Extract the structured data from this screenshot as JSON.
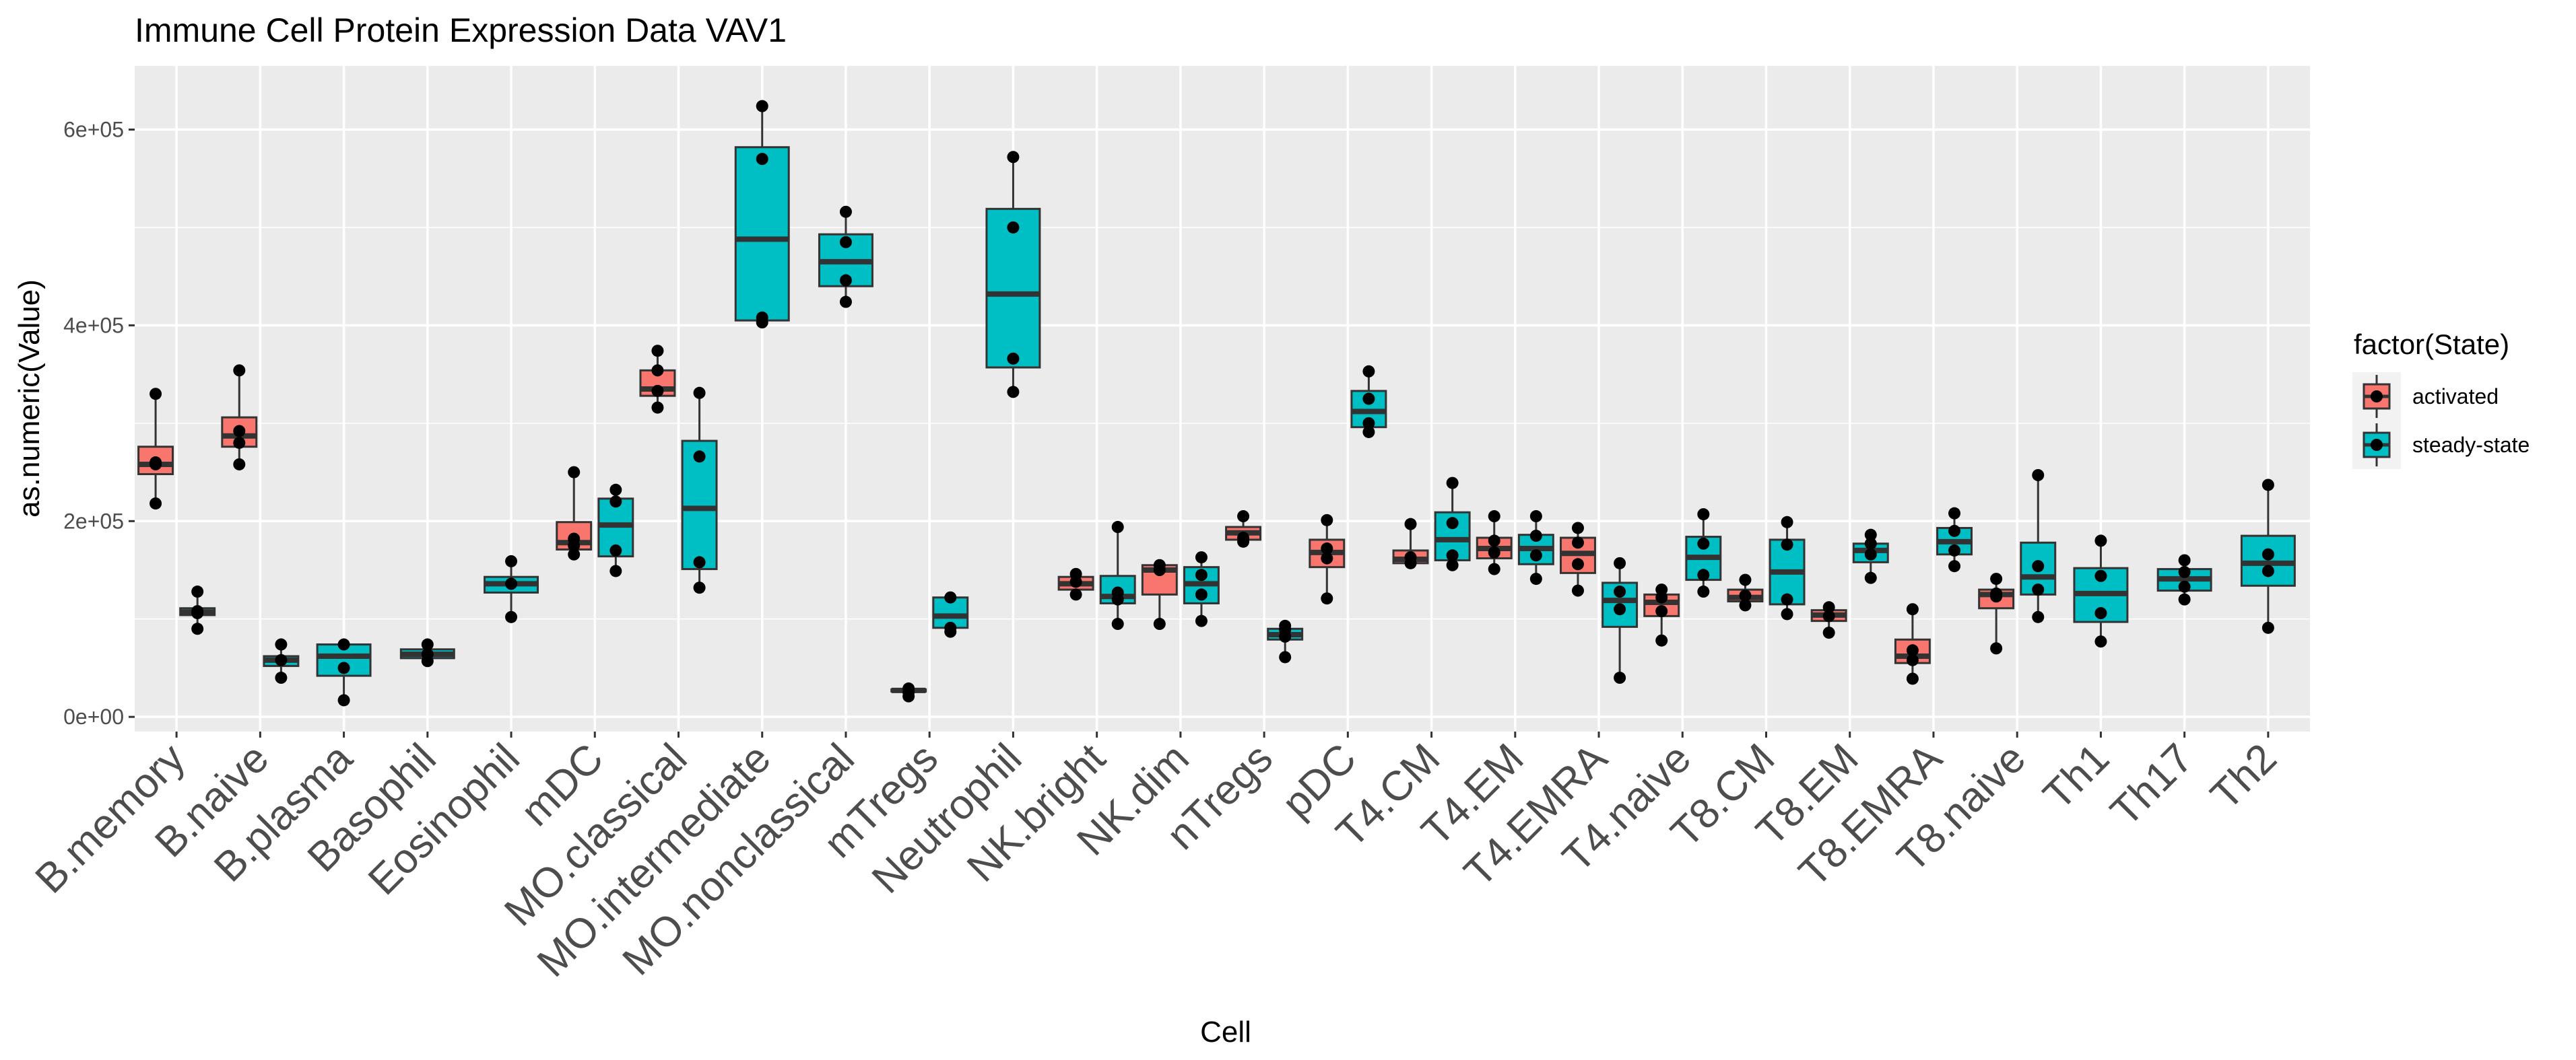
{
  "chart_data": {
    "type": "boxplot",
    "title": "Immune Cell Protein Expression Data VAV1",
    "xlabel": "Cell",
    "ylabel": "as.numeric(Value)",
    "ylim": [
      -15000,
      665000
    ],
    "yticks": [
      0,
      200000,
      400000,
      600000
    ],
    "ytick_labels": [
      "0e+00",
      "2e+05",
      "4e+05",
      "6e+05"
    ],
    "legend": {
      "title": "factor(State)",
      "position": "right",
      "entries": [
        {
          "key": "activated",
          "label": "activated",
          "color": "#F8766D"
        },
        {
          "key": "steady-state",
          "label": "steady-state",
          "color": "#00BFC4"
        }
      ]
    },
    "categories": [
      "B.memory",
      "B.naive",
      "B.plasma",
      "Basophil",
      "Eosinophil",
      "mDC",
      "MO.classical",
      "MO.intermediate",
      "MO.nonclassical",
      "mTregs",
      "Neutrophil",
      "NK.bright",
      "NK.dim",
      "nTregs",
      "pDC",
      "T4.CM",
      "T4.EM",
      "T4.EMRA",
      "T4.naive",
      "T8.CM",
      "T8.EM",
      "T8.EMRA",
      "T8.naive",
      "Th1",
      "Th17",
      "Th2"
    ],
    "groups": [
      {
        "category": "B.memory",
        "state": "activated",
        "q1": 248000,
        "median": 258000,
        "q3": 276000,
        "whisker_low": 218000,
        "whisker_high": 330000,
        "points": [
          218000,
          258000,
          260000,
          330000
        ]
      },
      {
        "category": "B.memory",
        "state": "steady-state",
        "q1": 104000,
        "median": 107000,
        "q3": 111000,
        "whisker_low": 90000,
        "whisker_high": 128000,
        "points": [
          90000,
          106000,
          108000,
          128000
        ]
      },
      {
        "category": "B.naive",
        "state": "activated",
        "q1": 276000,
        "median": 287000,
        "q3": 306000,
        "whisker_low": 258000,
        "whisker_high": 354000,
        "points": [
          258000,
          280000,
          292000,
          354000
        ]
      },
      {
        "category": "B.naive",
        "state": "steady-state",
        "q1": 52000,
        "median": 58000,
        "q3": 62000,
        "whisker_low": 40000,
        "whisker_high": 74000,
        "points": [
          40000,
          58000,
          74000
        ]
      },
      {
        "category": "B.plasma",
        "state": "steady-state",
        "q1": 42000,
        "median": 62000,
        "q3": 74000,
        "whisker_low": 17000,
        "whisker_high": 74000,
        "points": [
          17000,
          50000,
          74000
        ]
      },
      {
        "category": "Basophil",
        "state": "steady-state",
        "q1": 60000,
        "median": 64000,
        "q3": 69000,
        "whisker_low": 57000,
        "whisker_high": 74000,
        "points": [
          57000,
          64000,
          74000
        ]
      },
      {
        "category": "Eosinophil",
        "state": "steady-state",
        "q1": 127000,
        "median": 136000,
        "q3": 143000,
        "whisker_low": 102000,
        "whisker_high": 159000,
        "points": [
          102000,
          136000,
          159000
        ]
      },
      {
        "category": "mDC",
        "state": "activated",
        "q1": 171000,
        "median": 178000,
        "q3": 199000,
        "whisker_low": 166000,
        "whisker_high": 250000,
        "points": [
          166000,
          175000,
          182000,
          250000
        ]
      },
      {
        "category": "mDC",
        "state": "steady-state",
        "q1": 164000,
        "median": 196000,
        "q3": 223000,
        "whisker_low": 149000,
        "whisker_high": 232000,
        "points": [
          149000,
          170000,
          220000,
          232000
        ]
      },
      {
        "category": "MO.classical",
        "state": "activated",
        "q1": 328000,
        "median": 335000,
        "q3": 354000,
        "whisker_low": 316000,
        "whisker_high": 374000,
        "points": [
          316000,
          333000,
          354000,
          374000
        ]
      },
      {
        "category": "MO.classical",
        "state": "steady-state",
        "q1": 151000,
        "median": 213000,
        "q3": 282000,
        "whisker_low": 132000,
        "whisker_high": 331000,
        "points": [
          132000,
          158000,
          266000,
          331000
        ]
      },
      {
        "category": "MO.intermediate",
        "state": "steady-state",
        "q1": 405000,
        "median": 488000,
        "q3": 582000,
        "whisker_low": 403000,
        "whisker_high": 624000,
        "points": [
          403000,
          408000,
          570000,
          624000
        ]
      },
      {
        "category": "MO.nonclassical",
        "state": "steady-state",
        "q1": 440000,
        "median": 465000,
        "q3": 493000,
        "whisker_low": 424000,
        "whisker_high": 516000,
        "points": [
          424000,
          446000,
          485000,
          516000
        ]
      },
      {
        "category": "mTregs",
        "state": "activated",
        "q1": 26000,
        "median": 27000,
        "q3": 28000,
        "whisker_low": 21000,
        "whisker_high": 29000,
        "points": [
          21000,
          25000,
          29000
        ]
      },
      {
        "category": "mTregs",
        "state": "steady-state",
        "q1": 91000,
        "median": 103000,
        "q3": 122000,
        "whisker_low": 87000,
        "whisker_high": 122000,
        "points": [
          87000,
          91000,
          122000
        ]
      },
      {
        "category": "Neutrophil",
        "state": "steady-state",
        "q1": 357000,
        "median": 432000,
        "q3": 519000,
        "whisker_low": 332000,
        "whisker_high": 572000,
        "points": [
          332000,
          366000,
          500000,
          572000
        ]
      },
      {
        "category": "NK.bright",
        "state": "activated",
        "q1": 130000,
        "median": 136000,
        "q3": 143000,
        "whisker_low": 125000,
        "whisker_high": 146000,
        "points": [
          125000,
          138000,
          146000
        ]
      },
      {
        "category": "NK.bright",
        "state": "steady-state",
        "q1": 116000,
        "median": 123000,
        "q3": 144000,
        "whisker_low": 95000,
        "whisker_high": 194000,
        "points": [
          95000,
          120000,
          127000,
          194000
        ]
      },
      {
        "category": "NK.dim",
        "state": "activated",
        "q1": 125000,
        "median": 150000,
        "q3": 155000,
        "whisker_low": 95000,
        "whisker_high": 160000,
        "points": [
          95000,
          150000,
          155000
        ]
      },
      {
        "category": "NK.dim",
        "state": "steady-state",
        "q1": 116000,
        "median": 136000,
        "q3": 153000,
        "whisker_low": 98000,
        "whisker_high": 163000,
        "points": [
          98000,
          125000,
          145000,
          163000
        ]
      },
      {
        "category": "nTregs",
        "state": "activated",
        "q1": 181000,
        "median": 188000,
        "q3": 194000,
        "whisker_low": 179000,
        "whisker_high": 205000,
        "points": [
          179000,
          183000,
          205000
        ]
      },
      {
        "category": "nTregs",
        "state": "steady-state",
        "q1": 79000,
        "median": 84000,
        "q3": 90000,
        "whisker_low": 61000,
        "whisker_high": 93000,
        "points": [
          61000,
          82000,
          89000,
          93000
        ]
      },
      {
        "category": "pDC",
        "state": "activated",
        "q1": 153000,
        "median": 168000,
        "q3": 181000,
        "whisker_low": 121000,
        "whisker_high": 201000,
        "points": [
          121000,
          162000,
          172000,
          201000
        ]
      },
      {
        "category": "pDC",
        "state": "steady-state",
        "q1": 296000,
        "median": 312000,
        "q3": 333000,
        "whisker_low": 291000,
        "whisker_high": 353000,
        "points": [
          291000,
          300000,
          325000,
          353000
        ]
      },
      {
        "category": "T4.CM",
        "state": "activated",
        "q1": 157000,
        "median": 161000,
        "q3": 170000,
        "whisker_low": 157000,
        "whisker_high": 197000,
        "points": [
          157000,
          163000,
          197000
        ]
      },
      {
        "category": "T4.CM",
        "state": "steady-state",
        "q1": 160000,
        "median": 181000,
        "q3": 209000,
        "whisker_low": 155000,
        "whisker_high": 239000,
        "points": [
          155000,
          165000,
          198000,
          239000
        ]
      },
      {
        "category": "T4.EM",
        "state": "activated",
        "q1": 162000,
        "median": 172000,
        "q3": 183000,
        "whisker_low": 151000,
        "whisker_high": 205000,
        "points": [
          151000,
          168000,
          180000,
          205000
        ]
      },
      {
        "category": "T4.EM",
        "state": "steady-state",
        "q1": 156000,
        "median": 172000,
        "q3": 186000,
        "whisker_low": 141000,
        "whisker_high": 205000,
        "points": [
          141000,
          165000,
          185000,
          205000
        ]
      },
      {
        "category": "T4.EMRA",
        "state": "activated",
        "q1": 147000,
        "median": 167000,
        "q3": 183000,
        "whisker_low": 129000,
        "whisker_high": 193000,
        "points": [
          129000,
          156000,
          178000,
          193000
        ]
      },
      {
        "category": "T4.EMRA",
        "state": "steady-state",
        "q1": 92000,
        "median": 119000,
        "q3": 137000,
        "whisker_low": 40000,
        "whisker_high": 157000,
        "points": [
          40000,
          110000,
          128000,
          157000
        ]
      },
      {
        "category": "T4.naive",
        "state": "activated",
        "q1": 103000,
        "median": 117000,
        "q3": 125000,
        "whisker_low": 78000,
        "whisker_high": 130000,
        "points": [
          78000,
          108000,
          122000,
          130000
        ]
      },
      {
        "category": "T4.naive",
        "state": "steady-state",
        "q1": 140000,
        "median": 163000,
        "q3": 184000,
        "whisker_low": 128000,
        "whisker_high": 207000,
        "points": [
          128000,
          145000,
          177000,
          207000
        ]
      },
      {
        "category": "T8.CM",
        "state": "activated",
        "q1": 118000,
        "median": 122000,
        "q3": 130000,
        "whisker_low": 114000,
        "whisker_high": 140000,
        "points": [
          114000,
          124000,
          140000
        ]
      },
      {
        "category": "T8.CM",
        "state": "steady-state",
        "q1": 115000,
        "median": 148000,
        "q3": 181000,
        "whisker_low": 105000,
        "whisker_high": 199000,
        "points": [
          105000,
          120000,
          176000,
          199000
        ]
      },
      {
        "category": "T8.EM",
        "state": "activated",
        "q1": 98000,
        "median": 104000,
        "q3": 109000,
        "whisker_low": 86000,
        "whisker_high": 112000,
        "points": [
          86000,
          103000,
          112000
        ]
      },
      {
        "category": "T8.EM",
        "state": "steady-state",
        "q1": 158000,
        "median": 170000,
        "q3": 177000,
        "whisker_low": 142000,
        "whisker_high": 186000,
        "points": [
          142000,
          166000,
          177000,
          186000
        ]
      },
      {
        "category": "T8.EMRA",
        "state": "activated",
        "q1": 55000,
        "median": 62000,
        "q3": 79000,
        "whisker_low": 39000,
        "whisker_high": 110000,
        "points": [
          39000,
          58000,
          68000,
          110000
        ]
      },
      {
        "category": "T8.EMRA",
        "state": "steady-state",
        "q1": 166000,
        "median": 179000,
        "q3": 193000,
        "whisker_low": 154000,
        "whisker_high": 208000,
        "points": [
          154000,
          170000,
          190000,
          208000
        ]
      },
      {
        "category": "T8.naive",
        "state": "activated",
        "q1": 111000,
        "median": 125000,
        "q3": 130000,
        "whisker_low": 70000,
        "whisker_high": 141000,
        "points": [
          70000,
          123000,
          126000,
          141000
        ]
      },
      {
        "category": "T8.naive",
        "state": "steady-state",
        "q1": 125000,
        "median": 143000,
        "q3": 178000,
        "whisker_low": 102000,
        "whisker_high": 247000,
        "points": [
          102000,
          130000,
          154000,
          247000
        ]
      },
      {
        "category": "Th1",
        "state": "steady-state",
        "q1": 97000,
        "median": 126000,
        "q3": 152000,
        "whisker_low": 77000,
        "whisker_high": 180000,
        "points": [
          77000,
          106000,
          144000,
          180000
        ]
      },
      {
        "category": "Th17",
        "state": "steady-state",
        "q1": 129000,
        "median": 141000,
        "q3": 151000,
        "whisker_low": 120000,
        "whisker_high": 160000,
        "points": [
          120000,
          133000,
          148000,
          160000
        ]
      },
      {
        "category": "Th2",
        "state": "steady-state",
        "q1": 134000,
        "median": 157000,
        "q3": 185000,
        "whisker_low": 91000,
        "whisker_high": 237000,
        "points": [
          91000,
          149000,
          166000,
          237000
        ]
      }
    ]
  }
}
